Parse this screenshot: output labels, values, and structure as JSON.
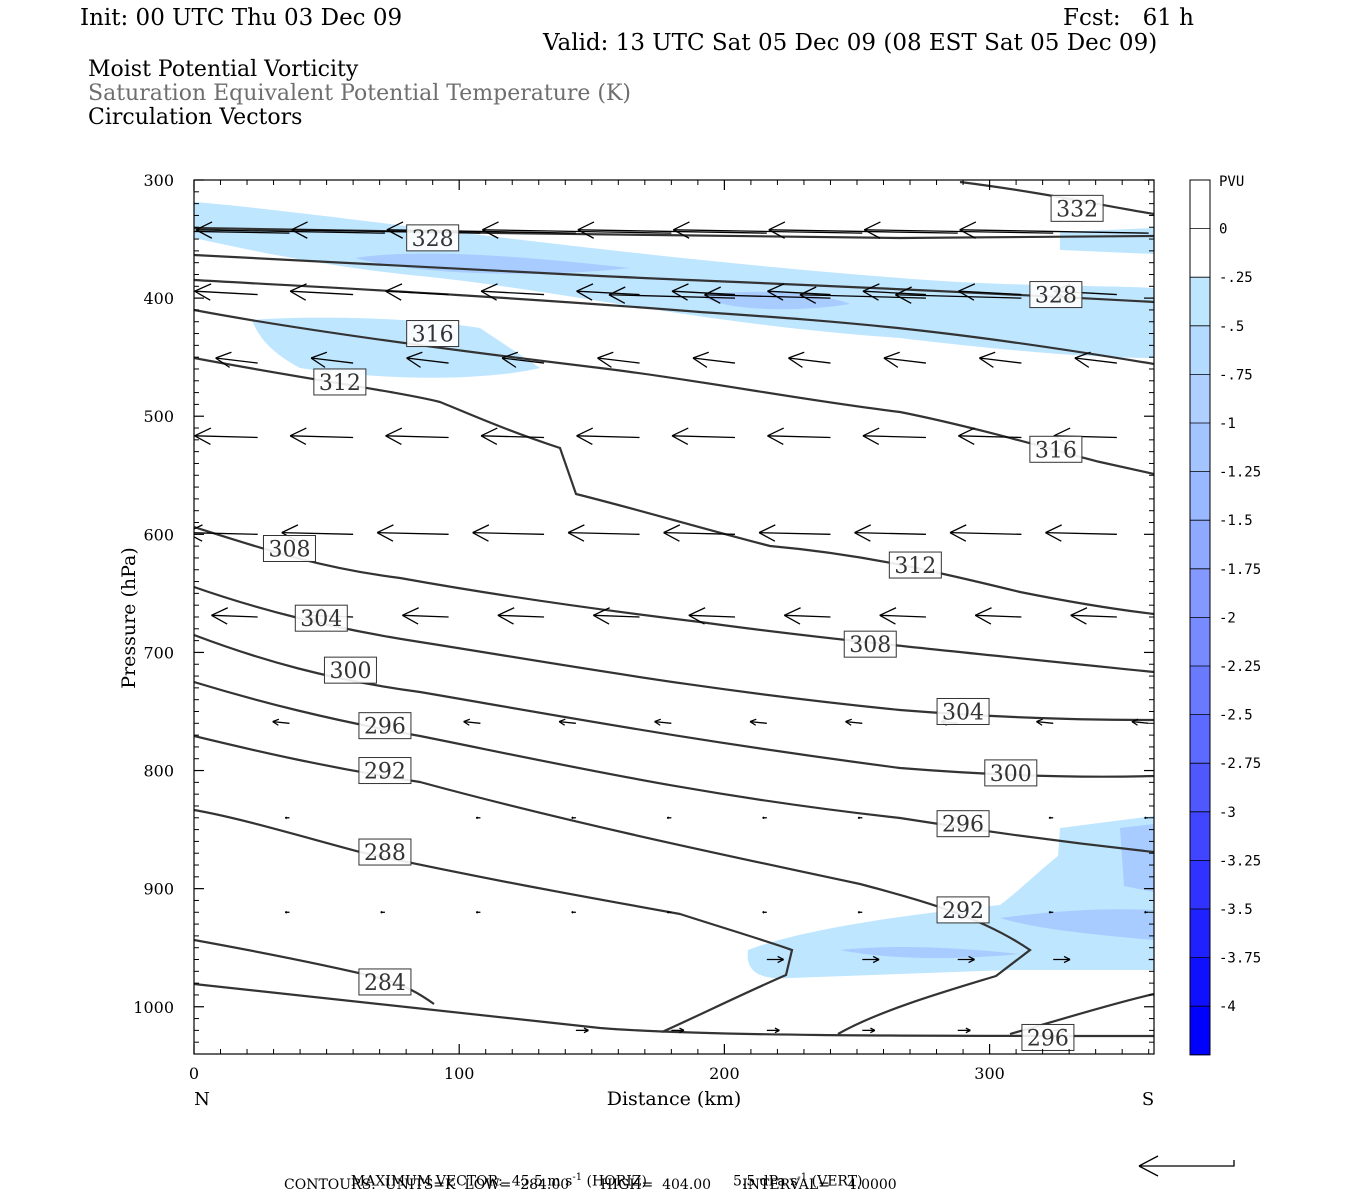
{
  "header": {
    "init": "Init: 00 UTC Thu 03 Dec 09",
    "fcst": "Fcst:   61 h",
    "valid": "Valid: 13 UTC Sat 05 Dec 09 (08 EST Sat 05 Dec 09)",
    "line1": "Moist Potential Vorticity",
    "line2": "Saturation Equivalent Potential Temperature (K)",
    "line3": "Circulation Vectors"
  },
  "footer": {
    "max_vector_label": "MAXIMUM VECTOR:",
    "horiz": "45.5 m s",
    "horiz_exp": "-1",
    "horiz_tag": "(HORIZ)",
    "vert": "5.5 dPa s",
    "vert_exp": "-1",
    "vert_tag": "(VERT)",
    "contours": "CONTOURS:  UNITS=K  LOW=  284.00       HIGH=  404.00       INTERVAL=    4.0000"
  },
  "colors": {
    "contour": "#333333",
    "pv_025": "#bfe6ff",
    "pv_05": "#a8ccff",
    "pv_075": "#99b8ff",
    "colorbar_deep": "#0000ff"
  },
  "chart_data": {
    "type": "contour",
    "xlabel": "Distance (km)",
    "ylabel": "Pressure (hPa)",
    "x_ticks": [
      0,
      100,
      200,
      300
    ],
    "x_end_labels": {
      "left": "N",
      "right": "S"
    },
    "xlim": [
      0,
      362
    ],
    "y_ticks": [
      300,
      400,
      500,
      600,
      700,
      800,
      900,
      1000
    ],
    "ylim": [
      1040,
      300
    ],
    "grid": false,
    "contour_labels": [
      {
        "value": "332",
        "x": 333,
        "p": 324
      },
      {
        "value": "328",
        "x": 90,
        "p": 349
      },
      {
        "value": "328",
        "x": 325,
        "p": 397
      },
      {
        "value": "316",
        "x": 90,
        "p": 430
      },
      {
        "value": "312",
        "x": 55,
        "p": 471
      },
      {
        "value": "316",
        "x": 325,
        "p": 528
      },
      {
        "value": "308",
        "x": 36,
        "p": 612
      },
      {
        "value": "312",
        "x": 272,
        "p": 626
      },
      {
        "value": "304",
        "x": 48,
        "p": 671
      },
      {
        "value": "308",
        "x": 255,
        "p": 693
      },
      {
        "value": "300",
        "x": 59,
        "p": 715
      },
      {
        "value": "304",
        "x": 290,
        "p": 750
      },
      {
        "value": "296",
        "x": 72,
        "p": 762
      },
      {
        "value": "292",
        "x": 72,
        "p": 800
      },
      {
        "value": "300",
        "x": 308,
        "p": 802
      },
      {
        "value": "296",
        "x": 290,
        "p": 845
      },
      {
        "value": "288",
        "x": 72,
        "p": 869
      },
      {
        "value": "292",
        "x": 290,
        "p": 918
      },
      {
        "value": "284",
        "x": 72,
        "p": 979
      },
      {
        "value": "296",
        "x": 322,
        "p": 1026
      }
    ],
    "colorbar": {
      "title": "PVU",
      "labels": [
        "0",
        "-.25",
        "-.5",
        "-.75",
        "-1",
        "-1.25",
        "-1.5",
        "-1.75",
        "-2",
        "-2.25",
        "-2.5",
        "-2.75",
        "-3",
        "-3.25",
        "-3.5",
        "-3.75",
        "-4"
      ]
    }
  }
}
